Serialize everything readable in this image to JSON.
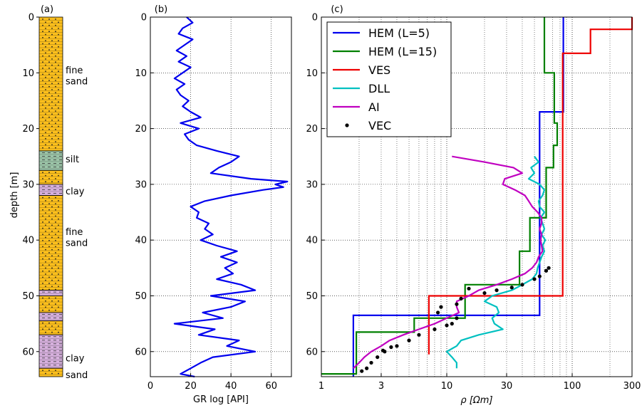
{
  "chart_data": [
    {
      "panel": "(a)",
      "type": "column",
      "ylabel": "depth [m]",
      "ylim": [
        0,
        64.5
      ],
      "yticks": [
        0,
        10,
        20,
        30,
        40,
        50,
        60
      ],
      "colors": {
        "sand": "#fbbf1e",
        "silt": "#9cc4a8",
        "clay": "#d6b0dd"
      },
      "layers": [
        {
          "top": 0,
          "bottom": 24,
          "kind": "sand"
        },
        {
          "top": 24,
          "bottom": 27.5,
          "kind": "silt"
        },
        {
          "top": 27.5,
          "bottom": 30,
          "kind": "sand"
        },
        {
          "top": 30,
          "bottom": 32,
          "kind": "clay"
        },
        {
          "top": 32,
          "bottom": 49,
          "kind": "sand"
        },
        {
          "top": 49,
          "bottom": 50,
          "kind": "clay"
        },
        {
          "top": 50,
          "bottom": 53,
          "kind": "sand"
        },
        {
          "top": 53,
          "bottom": 54.5,
          "kind": "clay"
        },
        {
          "top": 54.5,
          "bottom": 57,
          "kind": "sand"
        },
        {
          "top": 57,
          "bottom": 63,
          "kind": "clay"
        },
        {
          "top": 63,
          "bottom": 64.5,
          "kind": "sand"
        }
      ],
      "annotations": [
        {
          "text": "fine",
          "depth": 9.5
        },
        {
          "text": "sand",
          "depth": 11.5
        },
        {
          "text": "silt",
          "depth": 25.5
        },
        {
          "text": "clay",
          "depth": 31.2
        },
        {
          "text": "fine",
          "depth": 38.5
        },
        {
          "text": "sand",
          "depth": 40.5
        },
        {
          "text": "clay",
          "depth": 61.2
        },
        {
          "text": "sand",
          "depth": 64.2
        }
      ]
    },
    {
      "panel": "(b)",
      "type": "line",
      "xlabel": "GR log [API]",
      "xlim": [
        0,
        70
      ],
      "xticks": [
        0,
        20,
        40,
        60
      ],
      "ylim": [
        0,
        64.5
      ],
      "yticks": [
        0,
        10,
        20,
        30,
        40,
        50,
        60
      ],
      "grid": true,
      "series": [
        {
          "color": "#0000ee",
          "depth": [
            0,
            1,
            2,
            3,
            4,
            5,
            6,
            7,
            8,
            9,
            10,
            11,
            12,
            13,
            14,
            15,
            16,
            17,
            18,
            19,
            20,
            21,
            22,
            23,
            24,
            25,
            26,
            27,
            28,
            29,
            29.5,
            30,
            30.5,
            31,
            32,
            33,
            34,
            35,
            36,
            37,
            38,
            39,
            40,
            41,
            42,
            43,
            44,
            45,
            46,
            47,
            48,
            49,
            50,
            51,
            52,
            53,
            54,
            55,
            56,
            57,
            58,
            59,
            60,
            61,
            62,
            63,
            64,
            64.5
          ],
          "gr": [
            18,
            21,
            16,
            14,
            21,
            17,
            13,
            18,
            14,
            20,
            16,
            12,
            17,
            13,
            15,
            19,
            16,
            20,
            25,
            15,
            24,
            17,
            19,
            23,
            33,
            44,
            40,
            34,
            30,
            50,
            68,
            62,
            66,
            56,
            40,
            27,
            20,
            24,
            23,
            29,
            27,
            31,
            25,
            33,
            43,
            35,
            43,
            37,
            41,
            33,
            45,
            52,
            30,
            47,
            40,
            26,
            36,
            12,
            32,
            24,
            44,
            38,
            52,
            31,
            25,
            20,
            15,
            22
          ]
        }
      ]
    },
    {
      "panel": "(c)",
      "type": "line",
      "xlabel": "ρ [Ωm]",
      "xscale": "log",
      "xlim": [
        1,
        300
      ],
      "xticks": [
        1,
        3,
        10,
        30,
        100,
        300
      ],
      "ylim": [
        0,
        64.5
      ],
      "yticks": [
        0,
        10,
        20,
        30,
        40,
        50,
        60
      ],
      "grid": true,
      "legend": "top-left",
      "series": [
        {
          "name": "HEM (L=5)",
          "color": "#0000ee",
          "kind": "step",
          "points": [
            [
              85,
              0
            ],
            [
              85,
              17
            ],
            [
              55,
              17
            ],
            [
              55,
              53.5
            ],
            [
              1.8,
              53.5
            ],
            [
              1.8,
              64.5
            ]
          ]
        },
        {
          "name": "HEM (L=15)",
          "color": "#008000",
          "kind": "step",
          "points": [
            [
              60,
              0
            ],
            [
              60,
              10
            ],
            [
              72,
              10
            ],
            [
              72,
              19
            ],
            [
              76,
              19
            ],
            [
              76,
              23
            ],
            [
              71,
              23
            ],
            [
              71,
              27
            ],
            [
              62,
              27
            ],
            [
              62,
              36
            ],
            [
              46,
              36
            ],
            [
              46,
              42
            ],
            [
              38,
              42
            ],
            [
              38,
              48
            ],
            [
              14,
              48
            ],
            [
              14,
              54
            ],
            [
              5.5,
              54
            ],
            [
              5.5,
              56.5
            ],
            [
              1.9,
              56.5
            ],
            [
              1.9,
              64
            ],
            [
              1,
              64
            ]
          ]
        },
        {
          "name": "VES",
          "color": "#ee0000",
          "kind": "step",
          "points": [
            [
              300,
              0
            ],
            [
              300,
              2.2
            ],
            [
              140,
              2.2
            ],
            [
              140,
              6.5
            ],
            [
              84,
              6.5
            ],
            [
              84,
              50
            ],
            [
              7.2,
              50
            ],
            [
              7.2,
              60.5
            ]
          ]
        },
        {
          "name": "DLL",
          "color": "#00c0c0",
          "kind": "line",
          "depth": [
            25,
            26,
            27,
            28,
            29,
            30,
            31,
            32,
            33,
            34,
            35,
            36,
            37,
            38,
            39,
            40,
            41,
            42,
            43,
            44,
            45,
            46,
            47,
            48,
            49,
            50,
            51,
            52,
            53,
            54,
            55,
            56,
            57,
            58,
            59,
            60,
            61,
            62,
            63
          ],
          "rho": [
            50,
            54,
            47,
            50,
            45,
            55,
            60,
            58,
            54,
            55,
            60,
            56,
            58,
            60,
            57,
            61,
            58,
            60,
            57,
            55,
            53,
            52,
            48,
            40,
            33,
            23,
            20,
            25,
            26,
            23,
            24,
            28,
            18,
            13,
            12,
            10,
            11,
            12,
            12
          ]
        },
        {
          "name": "AI",
          "color": "#c000c0",
          "kind": "line",
          "depth": [
            25,
            26,
            27,
            28,
            29,
            30,
            31,
            32,
            33,
            34,
            35,
            36,
            37,
            38,
            39,
            40,
            41,
            42,
            43,
            44,
            45,
            46,
            47,
            48,
            49,
            50,
            51,
            52,
            53,
            54,
            55,
            56,
            57,
            58,
            59,
            60,
            61,
            62,
            63
          ],
          "rho": [
            11,
            20,
            34,
            40,
            29,
            28,
            35,
            42,
            45,
            48,
            53,
            57,
            57,
            55,
            57,
            56,
            57,
            58,
            54,
            52,
            48,
            42,
            33,
            25,
            18,
            15,
            12,
            12,
            12.5,
            10,
            8,
            6,
            4.5,
            3.5,
            3,
            2.5,
            2.2,
            2,
            1.8
          ]
        },
        {
          "name": "VEC",
          "color": "#000000",
          "kind": "points",
          "points": [
            [
              65,
              45
            ],
            [
              62,
              45.5
            ],
            [
              55,
              46.5
            ],
            [
              50,
              47
            ],
            [
              40,
              48
            ],
            [
              33,
              48.5
            ],
            [
              25,
              49
            ],
            [
              20,
              49.5
            ],
            [
              15,
              48.7
            ],
            [
              13,
              50.5
            ],
            [
              12,
              51.5
            ],
            [
              9,
              52
            ],
            [
              8.5,
              53
            ],
            [
              12,
              54
            ],
            [
              11,
              55
            ],
            [
              10,
              55.3
            ],
            [
              8,
              56
            ],
            [
              6,
              57
            ],
            [
              5,
              58
            ],
            [
              4,
              59
            ],
            [
              3.2,
              60
            ],
            [
              2.8,
              61
            ],
            [
              2.5,
              62
            ],
            [
              2.3,
              63
            ],
            [
              2.1,
              63.5
            ],
            [
              3.1,
              59.8
            ],
            [
              3.6,
              59.2
            ]
          ]
        }
      ]
    }
  ]
}
